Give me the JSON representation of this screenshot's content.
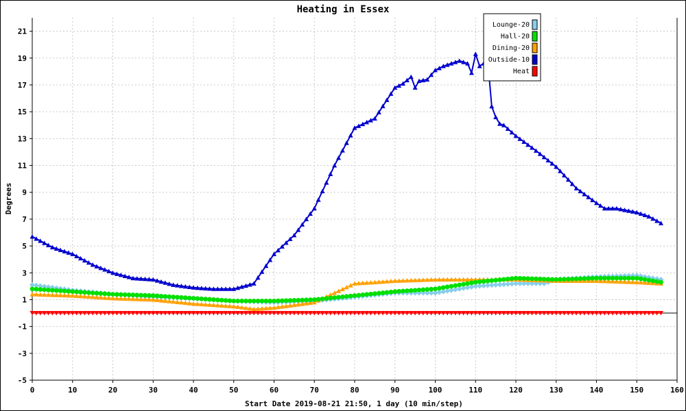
{
  "chart_data": {
    "type": "line",
    "title": "Heating in Essex",
    "xlabel": "Start Date 2019-08-21 21:50, 1 day (10 min/step)",
    "ylabel": "Degrees",
    "xlim": [
      0,
      160
    ],
    "ylim": [
      -5,
      22
    ],
    "x_ticks": [
      "0",
      "10",
      "20",
      "30",
      "40",
      "50",
      "60",
      "70",
      "80",
      "90",
      "100",
      "110",
      "120",
      "130",
      "140",
      "150",
      "160"
    ],
    "y_ticks": [
      "-5",
      "-3",
      "-1",
      "1",
      "3",
      "5",
      "7",
      "9",
      "11",
      "13",
      "15",
      "17",
      "19",
      "21"
    ],
    "grid": true,
    "legend_position": "top-right",
    "series": [
      {
        "name": "Lounge-20",
        "color": "#87ceeb",
        "marker": "diamond",
        "x": [
          0,
          10,
          20,
          30,
          40,
          50,
          60,
          70,
          80,
          90,
          100,
          110,
          120,
          127,
          130,
          140,
          150,
          156
        ],
        "y": [
          2.1,
          1.7,
          1.4,
          1.2,
          1.1,
          0.9,
          0.8,
          0.9,
          1.2,
          1.5,
          1.5,
          2.0,
          2.2,
          2.2,
          2.5,
          2.7,
          2.8,
          2.5
        ]
      },
      {
        "name": "Hall-20",
        "color": "#00e000",
        "marker": "circle",
        "x": [
          0,
          10,
          20,
          30,
          40,
          50,
          60,
          70,
          80,
          90,
          100,
          110,
          120,
          130,
          140,
          150,
          156
        ],
        "y": [
          1.8,
          1.6,
          1.4,
          1.3,
          1.1,
          0.9,
          0.9,
          1.0,
          1.3,
          1.6,
          1.8,
          2.3,
          2.6,
          2.5,
          2.6,
          2.6,
          2.3
        ]
      },
      {
        "name": "Dining-20",
        "color": "#ffa000",
        "marker": "triangle",
        "x": [
          0,
          10,
          20,
          30,
          40,
          50,
          55,
          60,
          70,
          75,
          80,
          90,
          100,
          110,
          120,
          130,
          140,
          150,
          156
        ],
        "y": [
          1.4,
          1.3,
          1.1,
          1.0,
          0.7,
          0.5,
          0.3,
          0.4,
          0.8,
          1.5,
          2.2,
          2.4,
          2.5,
          2.5,
          2.5,
          2.4,
          2.4,
          2.3,
          2.2
        ]
      },
      {
        "name": "Outside-10",
        "color": "#0000cc",
        "marker": "triangle",
        "x": [
          0,
          5,
          10,
          15,
          20,
          25,
          30,
          35,
          40,
          45,
          50,
          55,
          60,
          65,
          70,
          75,
          80,
          85,
          90,
          92,
          94,
          95,
          96,
          98,
          100,
          102,
          104,
          106,
          108,
          109,
          110,
          111,
          112,
          113,
          114,
          115,
          116,
          117,
          120,
          125,
          130,
          135,
          140,
          142,
          145,
          150,
          153,
          156
        ],
        "y": [
          5.7,
          4.9,
          4.4,
          3.6,
          3.0,
          2.6,
          2.5,
          2.1,
          1.9,
          1.8,
          1.8,
          2.2,
          4.4,
          5.8,
          7.8,
          11.0,
          13.8,
          14.5,
          16.8,
          17.1,
          17.6,
          16.8,
          17.3,
          17.4,
          18.1,
          18.4,
          18.6,
          18.8,
          18.6,
          17.9,
          19.3,
          18.4,
          18.6,
          18.9,
          15.4,
          14.6,
          14.1,
          14.0,
          13.2,
          12.1,
          10.9,
          9.3,
          8.2,
          7.8,
          7.8,
          7.5,
          7.2,
          6.7
        ]
      },
      {
        "name": "Heat",
        "color": "#ff0000",
        "marker": "triangle-down",
        "x": [
          0,
          156
        ],
        "y": [
          0,
          0
        ]
      }
    ]
  }
}
